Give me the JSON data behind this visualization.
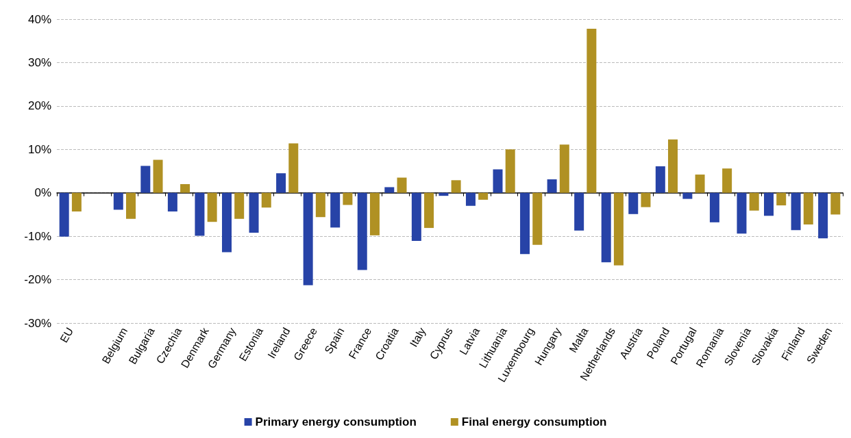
{
  "chart_data": {
    "type": "bar",
    "categories": [
      "EU",
      null,
      "Belgium",
      "Bulgaria",
      "Czechia",
      "Denmark",
      "Germany",
      "Estonia",
      "Ireland",
      "Greece",
      "Spain",
      "France",
      "Croatia",
      "Italy",
      "Cyprus",
      "Latvia",
      "Lithuania",
      "Luxembourg",
      "Hungary",
      "Malta",
      "Netherlands",
      "Austria",
      "Poland",
      "Portugal",
      "Romania",
      "Slovenia",
      "Slovakia",
      "Finland",
      "Sweden"
    ],
    "series": [
      {
        "name": "Primary energy consumption",
        "color": "#2743a7",
        "values": [
          -10.1,
          null,
          -3.9,
          6.2,
          -4.3,
          -9.9,
          -13.7,
          -9.2,
          4.5,
          -21.3,
          -8.0,
          -17.8,
          1.3,
          -11.1,
          -0.7,
          -3.0,
          5.4,
          -14.1,
          3.1,
          -8.7,
          -16.0,
          -4.9,
          6.1,
          -1.4,
          -6.8,
          -9.4,
          -5.3,
          -8.6,
          -10.5
        ]
      },
      {
        "name": "Final energy consumption",
        "color": "#b09123",
        "values": [
          -4.3,
          null,
          -6.0,
          7.6,
          2.0,
          -6.7,
          -6.0,
          -3.4,
          11.4,
          -5.6,
          -2.8,
          -9.8,
          3.5,
          -8.1,
          2.9,
          -1.6,
          10.0,
          -12.0,
          11.1,
          37.8,
          -16.7,
          -3.3,
          12.3,
          4.2,
          5.6,
          -4.1,
          -2.9,
          -7.3,
          -5.0
        ]
      }
    ],
    "ylim": [
      -30,
      40
    ],
    "yticks": [
      {
        "value": -30,
        "label": "-30%"
      },
      {
        "value": -20,
        "label": "-20%"
      },
      {
        "value": -10,
        "label": "-10%"
      },
      {
        "value": 0,
        "label": "0%"
      },
      {
        "value": 10,
        "label": "10%"
      },
      {
        "value": 20,
        "label": "20%"
      },
      {
        "value": 30,
        "label": "30%"
      },
      {
        "value": 40,
        "label": "40%"
      }
    ],
    "grid": "y",
    "legend": "bottom"
  }
}
